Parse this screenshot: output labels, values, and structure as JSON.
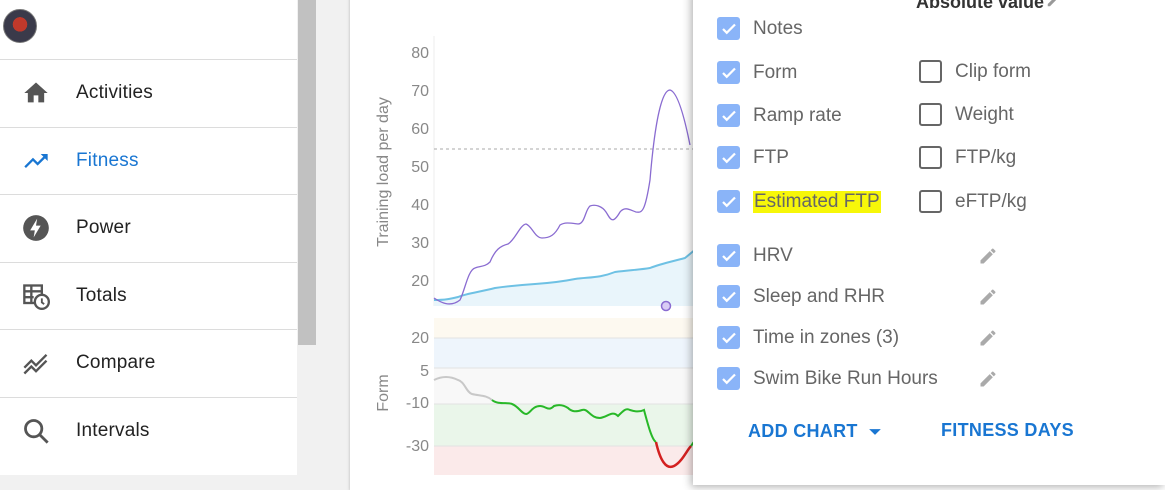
{
  "sidebar": {
    "items": [
      {
        "label": "Activities"
      },
      {
        "label": "Fitness"
      },
      {
        "label": "Power"
      },
      {
        "label": "Totals"
      },
      {
        "label": "Compare"
      },
      {
        "label": "Intervals"
      }
    ]
  },
  "chart": {
    "load_axis_label": "Training load per day",
    "load_ticks": [
      "80",
      "70",
      "60",
      "50",
      "40",
      "30",
      "20"
    ],
    "form_axis_label": "Form",
    "form_ticks": [
      "20",
      "5",
      "-10",
      "-30"
    ]
  },
  "panel": {
    "header": "Absolute value",
    "left_options": [
      {
        "label": "Notes",
        "checked": true
      },
      {
        "label": "Form",
        "checked": true
      },
      {
        "label": "Ramp rate",
        "checked": true
      },
      {
        "label": "FTP",
        "checked": true
      },
      {
        "label": "Estimated FTP",
        "checked": true
      }
    ],
    "right_options": [
      {
        "label": "Clip form",
        "checked": false
      },
      {
        "label": "Weight",
        "checked": false
      },
      {
        "label": "FTP/kg",
        "checked": false
      },
      {
        "label": "eFTP/kg",
        "checked": false
      }
    ],
    "charts": [
      {
        "label": "HRV",
        "checked": true
      },
      {
        "label": "Sleep and RHR",
        "checked": true
      },
      {
        "label": "Time in zones (3)",
        "checked": true
      },
      {
        "label": "Swim Bike Run Hours",
        "checked": true
      }
    ],
    "add_chart_label": "ADD CHART",
    "fitness_days_label": "FITNESS DAYS"
  },
  "colors": {
    "accent": "#1976d2",
    "checkbox": "#8ab4f8",
    "highlight": "#f7f709",
    "fitness": "#6ec1e4",
    "fatigue": "#8a6cd1"
  }
}
